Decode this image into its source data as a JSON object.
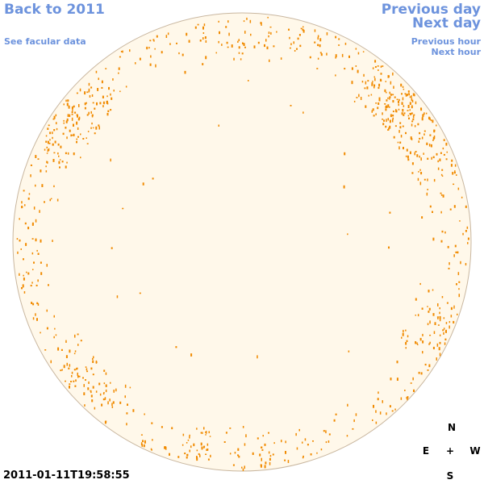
{
  "nav": {
    "back_label": "Back to 2011",
    "facular_label": "See facular data",
    "prev_day_label": "Previous day",
    "next_day_label": "Next day",
    "prev_hour_label": "Previous hour",
    "next_hour_label": "Next hour"
  },
  "timestamp": "2011-01-11T19:58:55",
  "compass": {
    "north": "N",
    "east": "E",
    "center": "+",
    "west": "W",
    "south": "S"
  },
  "colors": {
    "link": "#6d93dd",
    "disk_fill": "#fff8ea",
    "disk_border": "#c9b7a0",
    "facula": "#f08a00"
  }
}
